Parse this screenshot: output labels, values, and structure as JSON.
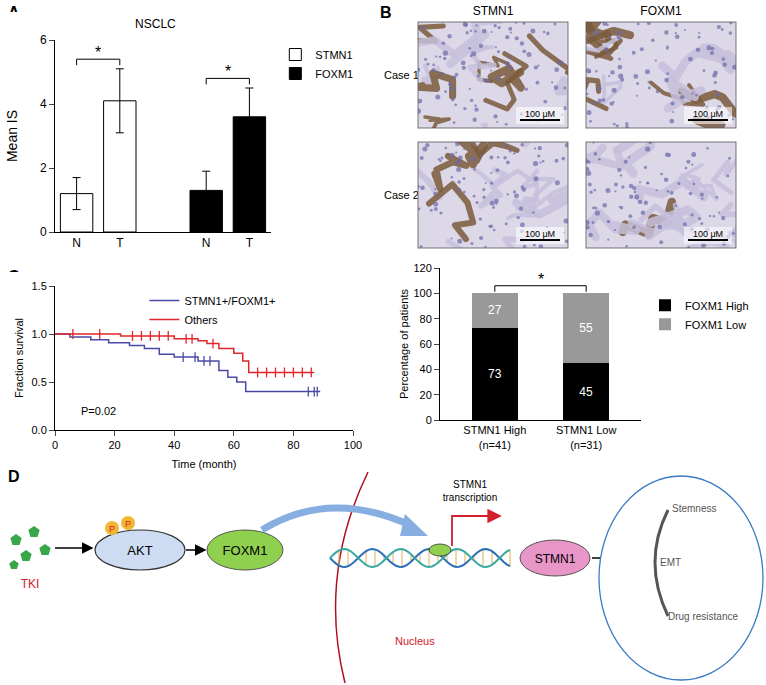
{
  "panel_labels": [
    "A",
    "B",
    "C",
    "D"
  ],
  "chart_data": [
    {
      "type": "bar",
      "title": "NSCLC",
      "y_label": "Mean IS",
      "categories": [
        "N",
        "T",
        null,
        "N",
        "T"
      ],
      "series": [
        {
          "name": "STMN1",
          "color": "#ffffff",
          "values": [
            1.2,
            4.1,
            null,
            null,
            null
          ],
          "errors": [
            0.5,
            1.0,
            null,
            null,
            null
          ]
        },
        {
          "name": "FOXM1",
          "color": "#000000",
          "values": [
            null,
            null,
            null,
            1.3,
            3.6
          ],
          "errors": [
            null,
            null,
            null,
            0.6,
            0.9
          ]
        }
      ],
      "ylim": [
        0,
        6
      ],
      "yticks": [
        0,
        2,
        4,
        6
      ],
      "legend": "right",
      "annotations": [
        {
          "text": "*",
          "from": 0,
          "to": 1,
          "y": 5.4
        },
        {
          "text": "*",
          "from": 3,
          "to": 4,
          "y": 4.8
        }
      ]
    },
    {
      "type": "bar",
      "stacked": true,
      "data_labels": true,
      "y_label": "Percentage of patients",
      "categories": [
        "STMN1 High\n(n=41)",
        "STMN1 Low\n(n=31)"
      ],
      "series": [
        {
          "name": "FOXM1 High",
          "color": "#000000",
          "values": [
            73,
            45
          ]
        },
        {
          "name": "FOXM1 Low",
          "color": "#999999",
          "values": [
            27,
            55
          ]
        }
      ],
      "ylim": [
        0,
        120
      ],
      "yticks": [
        0,
        20,
        40,
        60,
        80,
        100,
        120
      ],
      "legend": "right",
      "annotations": [
        {
          "text": "*",
          "from": 0,
          "to": 1,
          "y": 106
        }
      ]
    },
    {
      "type": "line",
      "line_style": "step",
      "x_label": "Time (month)",
      "y_label": "Fraction survival",
      "xlim": [
        0,
        100
      ],
      "xticks": [
        0,
        20,
        40,
        60,
        80,
        100
      ],
      "ylim": [
        0,
        1.5
      ],
      "yticks": [
        {
          "value": 0,
          "label": "0.0"
        },
        {
          "value": 0.5,
          "label": "0.5"
        },
        {
          "value": 1,
          "label": "1.0"
        },
        {
          "value": 1.5,
          "label": "1.5"
        }
      ],
      "legend": "top",
      "annotations": [
        {
          "text": "P=0.02",
          "x": 8,
          "y": 0.2
        }
      ],
      "series": [
        {
          "name": "STMN1+/FOXM1+",
          "color": "#4a4aa6",
          "x": [
            0,
            5,
            12,
            18,
            25,
            30,
            35,
            40,
            48,
            55,
            58,
            61,
            64,
            89
          ],
          "values": [
            1,
            0.97,
            0.94,
            0.91,
            0.88,
            0.85,
            0.79,
            0.76,
            0.72,
            0.62,
            0.55,
            0.5,
            0.4,
            0.4
          ],
          "censored_x": [
            43,
            47,
            50,
            52,
            85,
            87,
            88
          ],
          "censored_values": [
            0.76,
            0.76,
            0.72,
            0.72,
            0.4,
            0.4,
            0.4
          ]
        },
        {
          "name": "Others",
          "color": "#e0262a",
          "x": [
            0,
            22,
            40,
            48,
            51,
            55,
            60,
            63,
            65,
            87
          ],
          "values": [
            1,
            0.98,
            0.95,
            0.93,
            0.9,
            0.85,
            0.8,
            0.72,
            0.6,
            0.6
          ],
          "censored_x": [
            6,
            15,
            26,
            29,
            32,
            35,
            38,
            44,
            46,
            53,
            68,
            71,
            74,
            77,
            80,
            83,
            86
          ],
          "censored_values": [
            1,
            1,
            0.98,
            0.98,
            0.98,
            0.98,
            0.98,
            0.95,
            0.95,
            0.9,
            0.6,
            0.6,
            0.6,
            0.6,
            0.6,
            0.6,
            0.6
          ]
        }
      ]
    }
  ],
  "images": {
    "columns": [
      "STMN1",
      "FOXM1"
    ],
    "rows": [
      "Case 1",
      "Case 2"
    ],
    "scale_bar": "100 μM"
  },
  "diagram": {
    "drug": "TKI",
    "phospho": [
      "P",
      "P"
    ],
    "nodes": [
      "AKT",
      "FOXM1",
      "STMN1"
    ],
    "transcription_label": [
      "STMN1",
      "transcription"
    ],
    "compartment": "Nucleus",
    "outcomes": [
      "Stemness",
      "EMT",
      "Drug resistance"
    ]
  }
}
